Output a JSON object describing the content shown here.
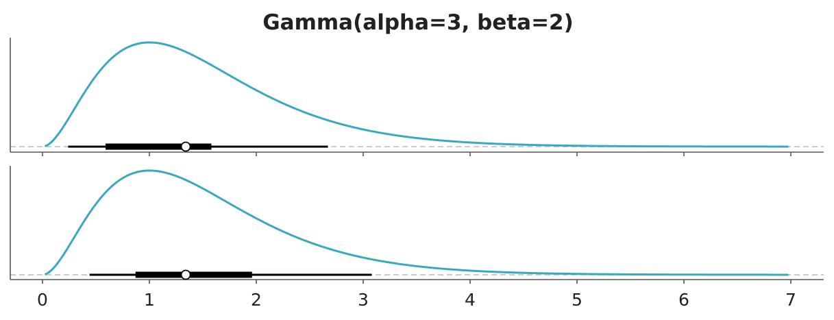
{
  "chart_data": {
    "type": "line",
    "title": "Gamma(alpha=3, beta=2)",
    "xlabel": "",
    "ylabel": "",
    "x_ticks": [
      0,
      1,
      2,
      3,
      4,
      5,
      6,
      7
    ],
    "x_tick_labels": [
      "0",
      "1",
      "2",
      "3",
      "4",
      "5",
      "6",
      "7"
    ],
    "xlim": [
      -0.3,
      7.3
    ],
    "y_ticks_shown": false,
    "grid": false,
    "legend": "none",
    "colors": {
      "curve": "#3aa8c1",
      "interval": "#000000",
      "baseline": "#cccccc",
      "axis": "#555555",
      "point_fill": "#ffffff"
    },
    "panels": [
      {
        "name": "top",
        "distribution": {
          "family": "gamma",
          "alpha": 3,
          "beta": 2
        },
        "x_range": [
          0.03,
          6.97
        ],
        "peak_density": 0.541,
        "interval_outer": [
          0.24,
          2.67
        ],
        "interval_inner": [
          0.59,
          1.58
        ],
        "point_estimate": 1.34
      },
      {
        "name": "bottom",
        "distribution": {
          "family": "gamma",
          "alpha": 3,
          "beta": 2
        },
        "x_range": [
          0.03,
          6.97
        ],
        "peak_density": 0.541,
        "interval_outer": [
          0.44,
          3.08
        ],
        "interval_inner": [
          0.87,
          1.96
        ],
        "point_estimate": 1.34
      }
    ]
  }
}
